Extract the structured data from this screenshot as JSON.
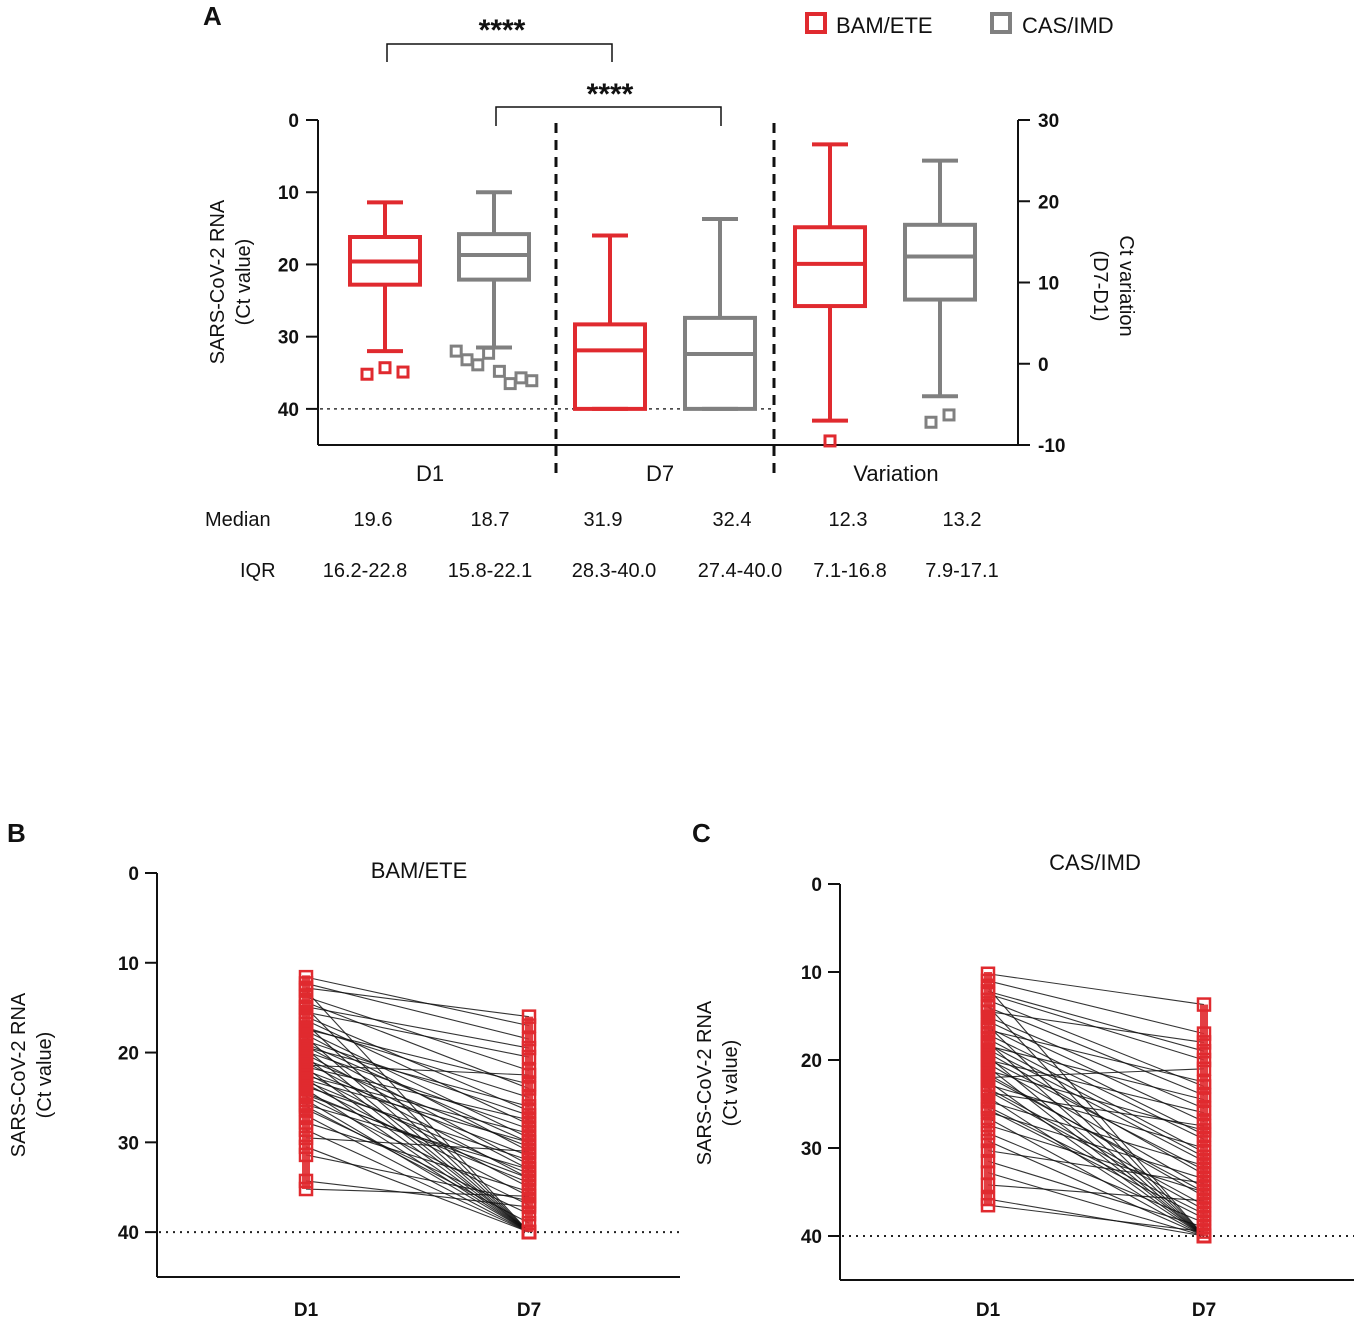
{
  "panel_labels": {
    "a": "A",
    "b": "B",
    "c": "C"
  },
  "colors": {
    "bam": "#e02a2f",
    "cas": "#808080",
    "axis": "#111111",
    "line": "#111111"
  },
  "chart_data": [
    {
      "type": "box",
      "panel": "A",
      "legend": [
        "BAM/ETE",
        "CAS/IMD"
      ],
      "ylabel_left": [
        "SARS-CoV-2 RNA",
        "(Ct value)"
      ],
      "ylabel_right": [
        "Ct variation",
        "(D7-D1)"
      ],
      "left_axis": {
        "ticks": [
          0,
          10,
          20,
          30,
          40
        ],
        "ylim": [
          0,
          45
        ],
        "reversed": true
      },
      "right_axis": {
        "ticks": [
          30,
          20,
          10,
          0,
          -10
        ],
        "ylim": [
          30,
          -10
        ]
      },
      "reference_line_ct": 40,
      "group_labels": [
        "D1",
        "D7",
        "Variation"
      ],
      "significance": [
        "****",
        "****"
      ],
      "boxes": [
        {
          "group": "D1",
          "series": "BAM/ETE",
          "axis": "left",
          "whisker_low": 11.4,
          "q1": 16.2,
          "median": 19.6,
          "q3": 22.8,
          "whisker_high": 32.0,
          "outliers": [
            35.2,
            34.3,
            34.9
          ]
        },
        {
          "group": "D1",
          "series": "CAS/IMD",
          "axis": "left",
          "whisker_low": 10.0,
          "q1": 15.8,
          "median": 18.7,
          "q3": 22.1,
          "whisker_high": 31.5,
          "outliers": [
            32.0,
            33.2,
            33.9,
            32.3,
            34.8,
            36.5,
            35.7,
            36.1
          ]
        },
        {
          "group": "D7",
          "series": "BAM/ETE",
          "axis": "left",
          "whisker_low": 16.0,
          "q1": 28.3,
          "median": 31.9,
          "q3": 40.0,
          "whisker_high": 40.0,
          "outliers": []
        },
        {
          "group": "D7",
          "series": "CAS/IMD",
          "axis": "left",
          "whisker_low": 13.7,
          "q1": 27.4,
          "median": 32.4,
          "q3": 40.0,
          "whisker_high": 40.0,
          "outliers": []
        },
        {
          "group": "Variation",
          "series": "BAM/ETE",
          "axis": "right",
          "whisker_low": -7.0,
          "q1": 7.1,
          "median": 12.3,
          "q3": 16.8,
          "whisker_high": 27.0,
          "outliers": [
            -9.5
          ]
        },
        {
          "group": "Variation",
          "series": "CAS/IMD",
          "axis": "right",
          "whisker_low": -4.0,
          "q1": 7.9,
          "median": 13.2,
          "q3": 17.1,
          "whisker_high": 25.0,
          "outliers": [
            -7.2,
            -6.3
          ]
        }
      ],
      "stats_table": {
        "median_label": "Median",
        "iqr_label": "IQR",
        "medians": [
          "19.6",
          "18.7",
          "31.9",
          "32.4",
          "12.3",
          "13.2"
        ],
        "iqrs": [
          "16.2-22.8",
          "15.8-22.1",
          "28.3-40.0",
          "27.4-40.0",
          "7.1-16.8",
          "7.9-17.1"
        ]
      }
    },
    {
      "type": "paired-line",
      "panel": "B",
      "title": "BAM/ETE",
      "ylabel": [
        "SARS-CoV-2 RNA",
        "(Ct value)"
      ],
      "categories": [
        "D1",
        "D7"
      ],
      "ylim": [
        0,
        45
      ],
      "ticks": [
        0,
        10,
        20,
        30,
        40
      ],
      "reference_line_ct": 40,
      "d1_range": [
        11.4,
        35.2
      ],
      "d7_range": [
        16.0,
        40.0
      ],
      "pairs_d1": [
        11.6,
        12.3,
        13.1,
        13.8,
        14.4,
        15.0,
        15.5,
        16.0,
        16.4,
        16.8,
        17.2,
        17.6,
        18.0,
        18.3,
        18.7,
        19.0,
        19.3,
        19.6,
        19.9,
        20.2,
        20.5,
        20.8,
        21.1,
        21.4,
        21.7,
        22.0,
        22.3,
        22.6,
        22.9,
        23.2,
        23.5,
        23.8,
        24.1,
        24.5,
        24.9,
        25.3,
        25.8,
        26.3,
        27.0,
        27.8,
        28.6,
        29.5,
        30.5,
        31.4,
        34.3,
        35.2,
        12.8,
        14.9,
        17.4,
        19.4,
        21.6,
        23.0,
        24.7,
        26.0
      ],
      "pairs_d7": [
        17.0,
        18.5,
        40.0,
        22.0,
        24.0,
        40.0,
        20.5,
        26.5,
        28.0,
        40.0,
        25.0,
        29.5,
        31.0,
        40.0,
        27.0,
        30.0,
        32.5,
        40.0,
        28.5,
        33.0,
        40.0,
        30.5,
        34.0,
        22.5,
        40.0,
        31.5,
        35.0,
        29.0,
        40.0,
        33.5,
        36.0,
        32.0,
        40.0,
        34.5,
        37.0,
        40.0,
        33.0,
        38.0,
        40.0,
        35.5,
        40.0,
        31.0,
        40.0,
        36.5,
        37.2,
        36.0,
        16.0,
        19.5,
        23.5,
        26.0,
        27.5,
        30.0,
        34.0,
        39.0
      ]
    },
    {
      "type": "paired-line",
      "panel": "C",
      "title": "CAS/IMD",
      "ylabel": [
        "SARS-CoV-2 RNA",
        "(Ct value)"
      ],
      "categories": [
        "D1",
        "D7"
      ],
      "ylim": [
        0,
        45
      ],
      "ticks": [
        0,
        10,
        20,
        30,
        40
      ],
      "reference_line_ct": 40,
      "d1_range": [
        10.0,
        36.5
      ],
      "d7_range": [
        13.7,
        40.0
      ],
      "pairs_d1": [
        10.2,
        11.0,
        11.8,
        12.5,
        13.2,
        13.9,
        14.5,
        15.1,
        15.6,
        16.1,
        16.6,
        17.1,
        17.6,
        18.0,
        18.4,
        18.8,
        19.2,
        19.6,
        20.0,
        20.4,
        20.8,
        21.2,
        21.6,
        22.0,
        22.4,
        22.8,
        23.2,
        23.7,
        24.2,
        24.7,
        25.3,
        25.9,
        26.6,
        27.4,
        28.3,
        29.2,
        30.3,
        31.5,
        32.8,
        34.2,
        35.8,
        36.5,
        12.2,
        14.0,
        16.3,
        18.2,
        19.9,
        21.9,
        23.5,
        25.6
      ],
      "pairs_d7": [
        13.7,
        17.0,
        40.0,
        20.0,
        23.0,
        40.0,
        18.0,
        25.5,
        27.0,
        40.0,
        22.5,
        29.0,
        30.5,
        40.0,
        24.5,
        31.5,
        33.0,
        40.0,
        26.0,
        34.5,
        40.0,
        28.0,
        35.5,
        21.0,
        40.0,
        30.0,
        36.5,
        27.5,
        40.0,
        32.0,
        37.5,
        33.5,
        40.0,
        35.0,
        38.5,
        40.0,
        34.0,
        39.0,
        40.0,
        36.0,
        40.0,
        39.5,
        19.0,
        24.0,
        28.5,
        31.0,
        32.5,
        35.0,
        37.0,
        38.0
      ]
    }
  ]
}
